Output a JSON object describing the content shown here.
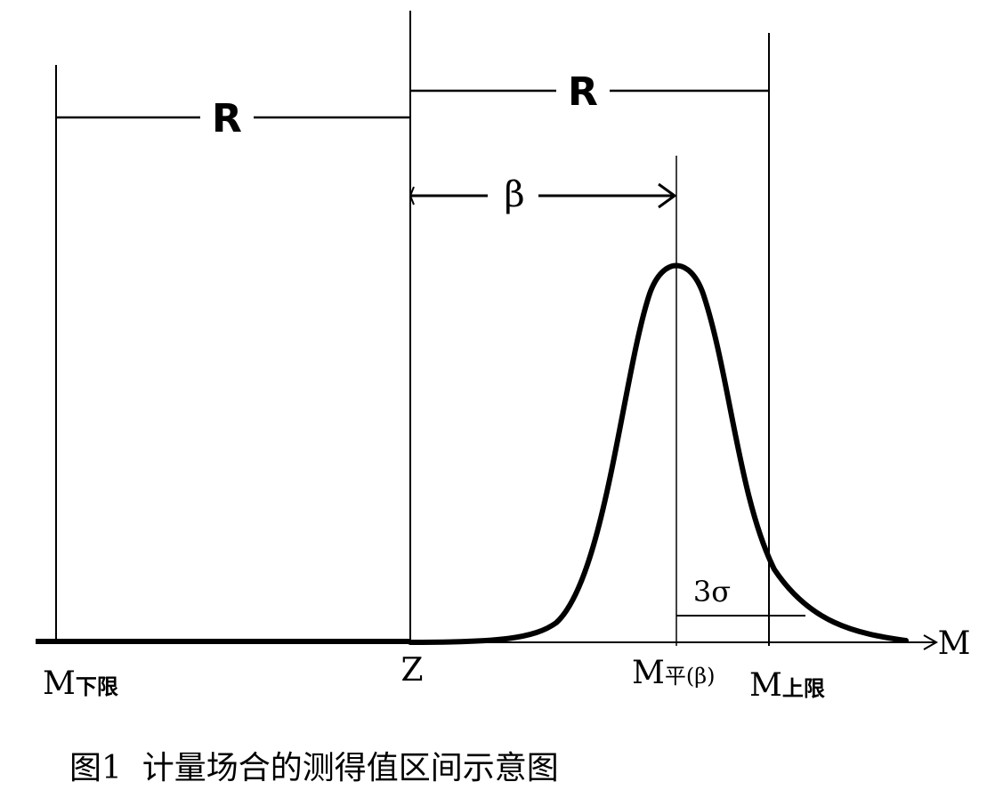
{
  "labels": {
    "r_left": "R",
    "r_right": "R",
    "beta": "β",
    "three_sigma": "3σ",
    "axis": "M",
    "z": "Z"
  },
  "points": [
    {
      "main": "M",
      "sub": "下限"
    },
    {
      "main": "M",
      "sub": "平(β)"
    },
    {
      "main": "M",
      "sub": "上限"
    }
  ],
  "caption": "图1  计量场合的测得值区间示意图"
}
